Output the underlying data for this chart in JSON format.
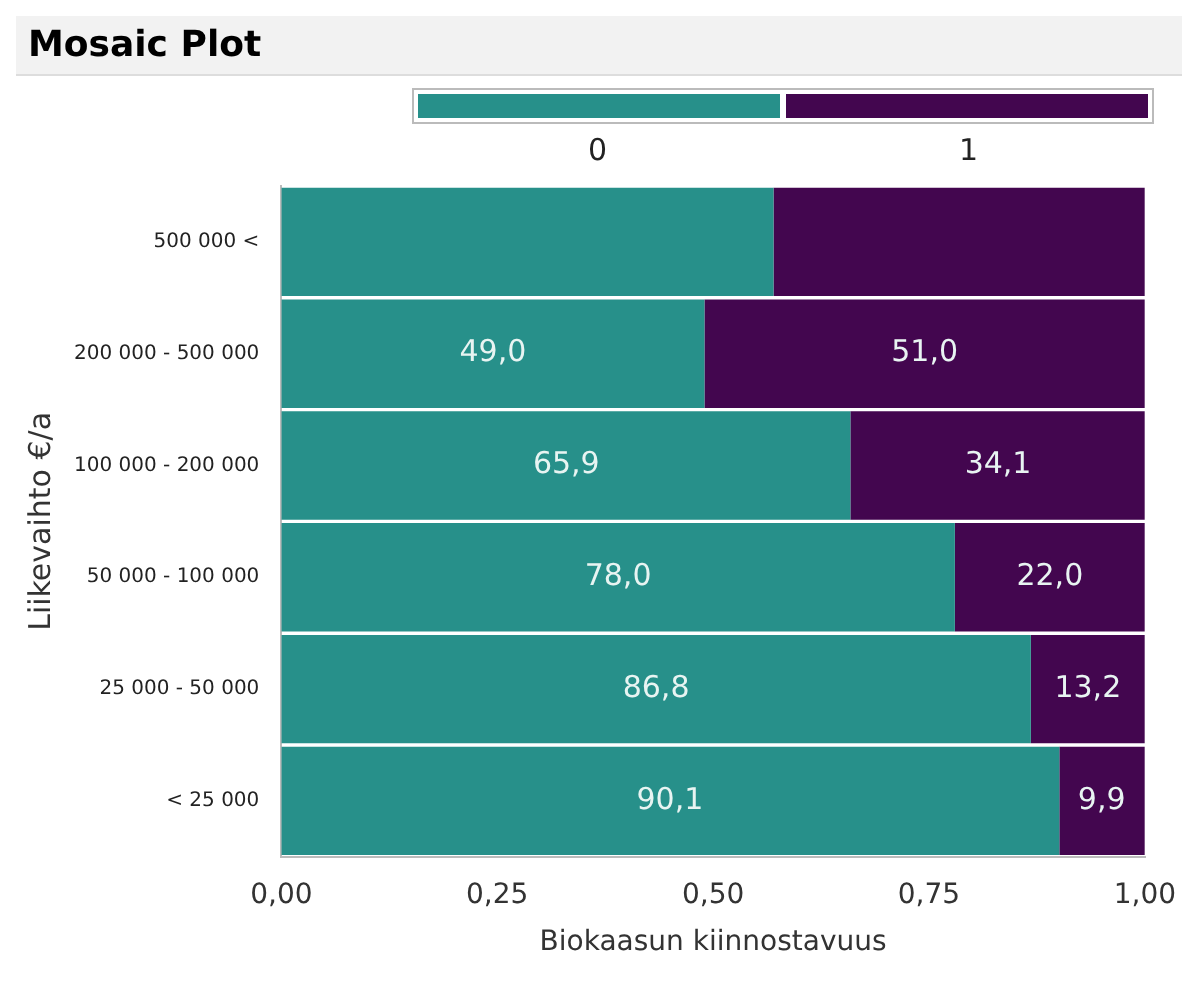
{
  "chart_data": {
    "type": "bar",
    "title": "Mosaic Plot",
    "orientation": "horizontal",
    "stacked": true,
    "categories": [
      "500 000 <",
      "200 000 - 500 000",
      "100 000 - 200 000",
      "50 000 - 100 000",
      "25 000 - 50 000",
      "< 25 000"
    ],
    "series": [
      {
        "name": "0",
        "color": "#27908a",
        "values": [
          0.57,
          0.49,
          0.659,
          0.78,
          0.868,
          0.901
        ]
      },
      {
        "name": "1",
        "color": "#43064f",
        "values": [
          0.43,
          0.51,
          0.341,
          0.22,
          0.132,
          0.099
        ]
      }
    ],
    "annotations": [
      {
        "text": "49,0",
        "x": 0.245,
        "y": "200 000 - 500 000"
      },
      {
        "text": "51,0",
        "x": 0.745,
        "y": "200 000 - 500 000"
      },
      {
        "text": "65,9",
        "x": 0.33,
        "y": "100 000 - 200 000"
      },
      {
        "text": "34,1",
        "x": 0.83,
        "y": "100 000 - 200 000"
      },
      {
        "text": "78,0",
        "x": 0.39,
        "y": "50 000 - 100 000"
      },
      {
        "text": "22,0",
        "x": 0.89,
        "y": "50 000 - 100 000"
      },
      {
        "text": "86,8",
        "x": 0.434,
        "y": "25 000 - 50 000"
      },
      {
        "text": "13,2",
        "x": 0.934,
        "y": "25 000 - 50 000"
      },
      {
        "text": "90,1",
        "x": 0.45,
        "y": "< 25 000"
      },
      {
        "text": "9,9",
        "x": 0.95,
        "y": "< 25 000"
      }
    ],
    "xlim": [
      0,
      1
    ],
    "xticks": [
      {
        "value": 0,
        "label": "0,00"
      },
      {
        "value": 0.25,
        "label": "0,25"
      },
      {
        "value": 0.5,
        "label": "0,50"
      },
      {
        "value": 0.75,
        "label": "0,75"
      },
      {
        "value": 1,
        "label": "1,00"
      }
    ],
    "xlabel": "Biokaasun kiinnostavuus",
    "ylabel": "Liikevaihto €/a",
    "legend": "top",
    "grid": false
  }
}
